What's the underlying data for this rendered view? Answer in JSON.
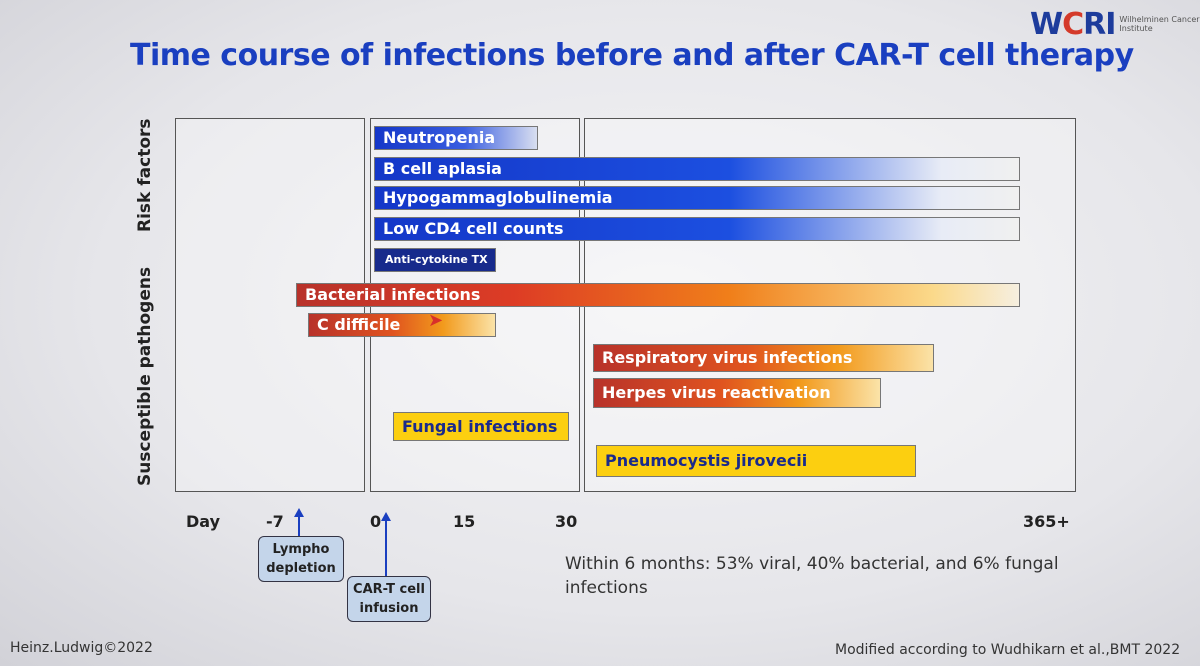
{
  "title": "Time course of infections before and after CAR-T cell therapy",
  "logo": {
    "mark_w": "W",
    "mark_c": "C",
    "mark_ri": "RI",
    "text": "Wilhelminen Cancer Research Institute"
  },
  "side_labels": {
    "risk": "Risk factors",
    "pathogens": "Susceptible pathogens"
  },
  "bars": {
    "neutropenia": "Neutropenia",
    "b_cell": "B cell aplasia",
    "hypogamma": "Hypogammaglobulinemia",
    "cd4": "Low CD4 cell counts",
    "anti_cytokine": "Anti-cytokine TX",
    "bacterial": "Bacterial infections",
    "c_difficile": "C difficile",
    "respiratory": "Respiratory virus infections",
    "herpes": "Herpes virus reactivation",
    "fungal": "Fungal infections",
    "pneumocystis": "Pneumocystis jirovecii"
  },
  "axis": {
    "day": "Day",
    "t_minus7": "-7",
    "t0": "0",
    "t15": "15",
    "t30": "30",
    "t365": "365+"
  },
  "callouts": {
    "lympho": "Lympho depletion",
    "cart": "CAR-T cell infusion"
  },
  "note": "Within 6 months:  53% viral, 40% bacterial, and 6% fungal infections",
  "footer_left": "Heinz.Ludwig©2022",
  "footer_right": "Modified according to Wudhikarn et al.,BMT 2022"
}
